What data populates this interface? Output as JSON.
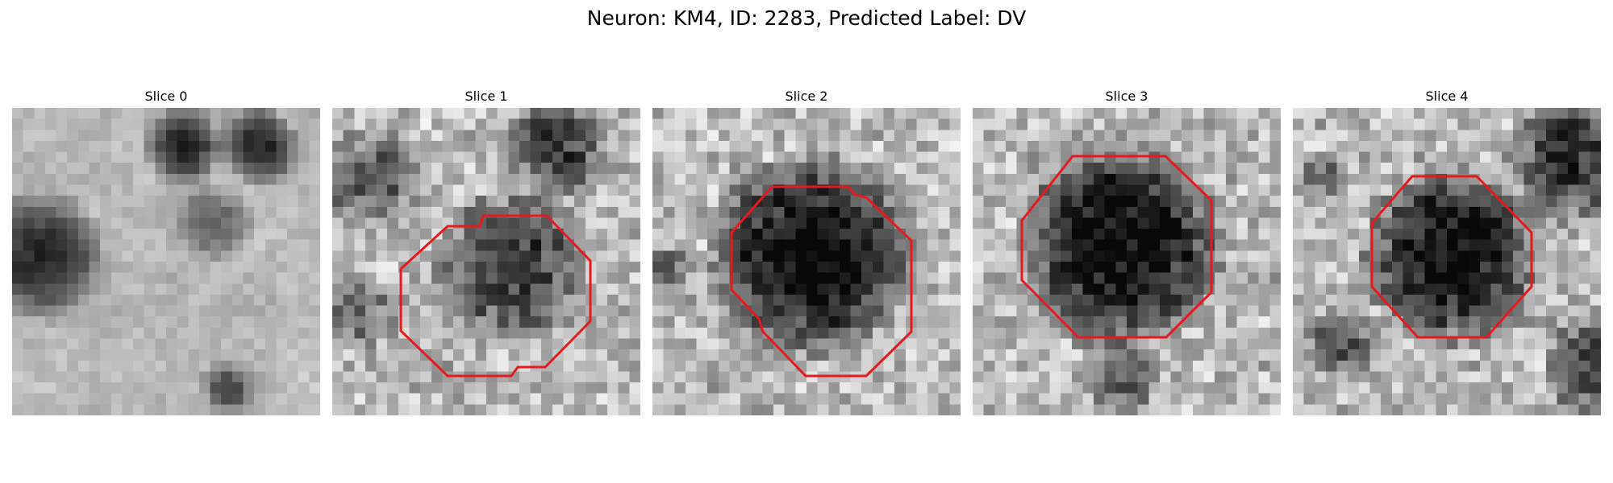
{
  "figure": {
    "title": "Neuron: KM4, ID: 2283, Predicted Label: DV"
  },
  "panels": [
    {
      "title": "Slice 0",
      "contour": false
    },
    {
      "title": "Slice 1",
      "contour": true
    },
    {
      "title": "Slice 2",
      "contour": true
    },
    {
      "title": "Slice 3",
      "contour": true
    },
    {
      "title": "Slice 4",
      "contour": true
    }
  ],
  "colors": {
    "contour": "#e41a1c",
    "background": "#ffffff"
  },
  "image": {
    "colormap": "grayscale",
    "grid": "28x28"
  }
}
